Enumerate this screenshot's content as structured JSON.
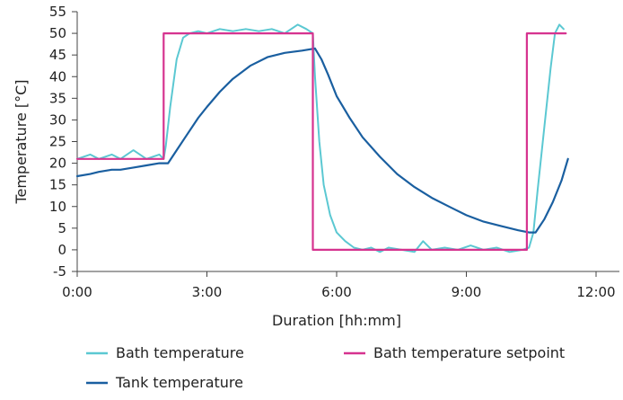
{
  "chart_data": {
    "type": "line",
    "title": "",
    "xlabel": "Duration [hh:mm]",
    "ylabel": "Temperature [°C]",
    "xlim": [
      0,
      12
    ],
    "ylim": [
      -5,
      55
    ],
    "x_ticks": [
      0,
      3,
      6,
      9,
      12
    ],
    "x_tick_labels": [
      "0:00",
      "3:00",
      "6:00",
      "9:00",
      "12:00"
    ],
    "y_ticks": [
      -5,
      0,
      5,
      10,
      15,
      20,
      25,
      30,
      35,
      40,
      45,
      50,
      55
    ],
    "y_tick_labels": [
      "-5",
      "0",
      "5",
      "10",
      "15",
      "20",
      "25",
      "30",
      "35",
      "40",
      "45",
      "50",
      "55"
    ],
    "grid": false,
    "legend_position": "bottom",
    "series": [
      {
        "name": "Bath temperature",
        "color": "#5bc8d2",
        "x": [
          0,
          0.3,
          0.5,
          0.8,
          1.0,
          1.3,
          1.6,
          1.9,
          2.0,
          2.05,
          2.15,
          2.3,
          2.45,
          2.6,
          2.8,
          3.0,
          3.3,
          3.6,
          3.9,
          4.2,
          4.5,
          4.8,
          5.1,
          5.3,
          5.45,
          5.5,
          5.6,
          5.7,
          5.85,
          6.0,
          6.2,
          6.4,
          6.6,
          6.8,
          7.0,
          7.2,
          7.5,
          7.8,
          8.0,
          8.2,
          8.5,
          8.8,
          9.1,
          9.4,
          9.7,
          10.0,
          10.3,
          10.45,
          10.55,
          10.65,
          10.8,
          10.95,
          11.05,
          11.15,
          11.25
        ],
        "y": [
          21,
          22,
          21,
          22,
          21,
          23,
          21,
          22,
          21,
          24,
          33,
          44,
          49,
          50,
          50.5,
          50,
          51,
          50.5,
          51,
          50.5,
          51,
          50,
          52,
          51,
          50,
          40,
          25,
          15,
          8,
          4,
          2,
          0.5,
          0,
          0.5,
          -0.5,
          0.5,
          0,
          -0.5,
          2,
          0,
          0.5,
          0,
          1,
          0,
          0.5,
          -0.5,
          0,
          0.5,
          4,
          14,
          28,
          42,
          50,
          52,
          51
        ]
      },
      {
        "name": "Tank temperature",
        "color": "#1a5fa0",
        "x": [
          0,
          0.3,
          0.5,
          0.8,
          1.0,
          1.3,
          1.6,
          1.9,
          2.1,
          2.3,
          2.5,
          2.8,
          3.0,
          3.3,
          3.6,
          4.0,
          4.4,
          4.8,
          5.2,
          5.5,
          5.65,
          5.8,
          6.0,
          6.3,
          6.6,
          7.0,
          7.4,
          7.8,
          8.2,
          8.6,
          9.0,
          9.4,
          9.8,
          10.2,
          10.45,
          10.6,
          10.8,
          11.0,
          11.2,
          11.35
        ],
        "y": [
          17,
          17.5,
          18,
          18.5,
          18.5,
          19,
          19.5,
          20,
          20,
          23,
          26,
          30.5,
          33,
          36.5,
          39.5,
          42.5,
          44.5,
          45.5,
          46,
          46.5,
          44,
          40.5,
          35.5,
          30.5,
          26,
          21.5,
          17.5,
          14.5,
          12,
          10,
          8,
          6.5,
          5.5,
          4.5,
          4,
          4,
          7,
          11,
          16,
          21
        ]
      },
      {
        "name": "Bath temperature setpoint",
        "color": "#d6338f",
        "x": [
          0,
          2.0,
          2.0,
          5.45,
          5.45,
          10.4,
          10.4,
          11.3
        ],
        "y": [
          21,
          21,
          50,
          50,
          0,
          0,
          50,
          50
        ]
      }
    ]
  }
}
